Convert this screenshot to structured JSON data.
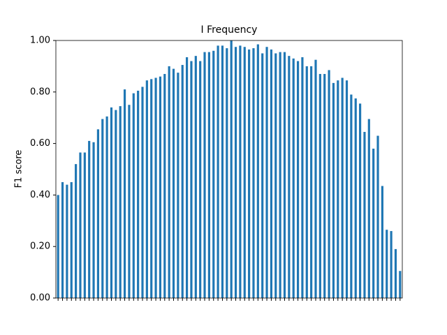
{
  "chart_data": {
    "type": "bar",
    "title": "I Frequency",
    "ylabel": "F1 score",
    "categories": [
      null,
      null,
      null,
      null,
      null,
      null,
      null,
      null,
      null,
      null,
      null,
      null,
      null,
      null,
      null,
      null,
      null,
      null,
      null,
      null,
      null,
      null,
      null,
      null,
      null,
      null,
      null,
      null,
      null,
      null,
      null,
      null,
      null,
      null,
      null,
      null,
      null,
      null,
      null,
      null,
      null,
      null,
      null,
      null,
      null,
      null,
      null,
      null,
      null,
      null,
      null,
      null,
      null,
      null,
      null,
      null,
      null,
      null,
      null,
      null,
      null,
      null,
      null,
      null,
      null,
      null,
      null,
      null,
      null,
      null,
      null,
      null,
      null,
      null,
      null,
      null,
      null,
      null
    ],
    "values": [
      0.4,
      0.45,
      0.44,
      0.45,
      0.52,
      0.565,
      0.565,
      0.61,
      0.605,
      0.655,
      0.695,
      0.705,
      0.74,
      0.73,
      0.745,
      0.81,
      0.75,
      0.795,
      0.805,
      0.82,
      0.845,
      0.85,
      0.855,
      0.86,
      0.87,
      0.9,
      0.89,
      0.875,
      0.905,
      0.935,
      0.92,
      0.94,
      0.92,
      0.955,
      0.955,
      0.96,
      0.98,
      0.98,
      0.97,
      1.0,
      0.975,
      0.98,
      0.975,
      0.965,
      0.97,
      0.985,
      0.95,
      0.975,
      0.965,
      0.95,
      0.955,
      0.955,
      0.94,
      0.93,
      0.92,
      0.935,
      0.9,
      0.9,
      0.925,
      0.87,
      0.87,
      0.885,
      0.835,
      0.845,
      0.855,
      0.845,
      0.79,
      0.775,
      0.755,
      0.645,
      0.695,
      0.58,
      0.63,
      0.435,
      0.265,
      0.26,
      0.19,
      0.105
    ],
    "color": "#1f77b4",
    "ylim": [
      0,
      1
    ],
    "yticks": [
      {
        "value": 0,
        "label": "0.00"
      },
      {
        "value": 0.2,
        "label": "0.20"
      },
      {
        "value": 0.4,
        "label": "0.40"
      },
      {
        "value": 0.6,
        "label": "0.60"
      },
      {
        "value": 0.8,
        "label": "0.80"
      },
      {
        "value": 1,
        "label": "1.00"
      }
    ],
    "grid": false
  }
}
